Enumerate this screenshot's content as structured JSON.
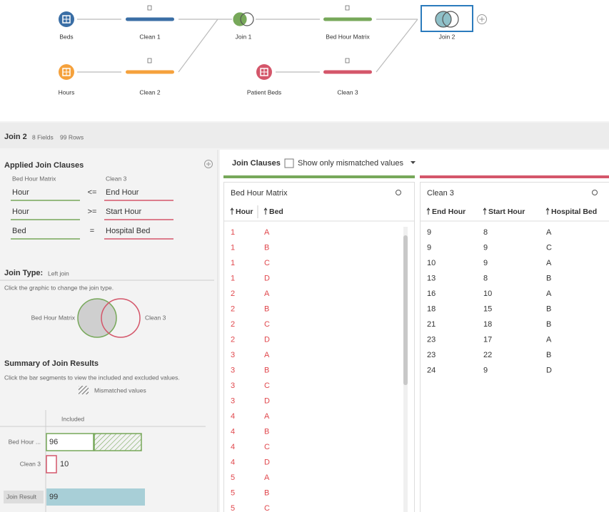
{
  "flow": {
    "nodes": [
      {
        "label": "Beds"
      },
      {
        "label": "Clean 1"
      },
      {
        "label": "Join 1"
      },
      {
        "label": "Bed Hour Matrix"
      },
      {
        "label": "Join 2"
      },
      {
        "label": "Hours"
      },
      {
        "label": "Clean 2"
      },
      {
        "label": "Patient Beds"
      },
      {
        "label": "Clean 3"
      }
    ]
  },
  "header": {
    "title": "Join 2",
    "fields": "8 Fields",
    "rows": "99 Rows"
  },
  "join_clauses": {
    "title": "Applied Join Clauses",
    "left_source": "Bed Hour Matrix",
    "right_source": "Clean 3",
    "clauses": [
      [
        "Hour",
        "<=",
        "End Hour"
      ],
      [
        "Hour",
        ">=",
        "Start Hour"
      ],
      [
        "Bed",
        "=",
        "Hospital Bed"
      ]
    ]
  },
  "join_type": {
    "label": "Join Type:",
    "value": "Left join",
    "hint": "Click the graphic to change the join type.",
    "left": "Bed Hour Matrix",
    "right": "Clean 3"
  },
  "summary": {
    "title": "Summary of Join Results",
    "hint": "Click the bar segments to view the included and excluded values.",
    "legend": "Mismatched values",
    "column": "Included",
    "rows": [
      {
        "label": "Bed Hour ...",
        "included": 96
      },
      {
        "label": "Clean 3",
        "included": 10
      },
      {
        "label": "Join Result",
        "included": 99
      }
    ]
  },
  "toolbar": {
    "tab": "Join Clauses",
    "filter": "Show only mismatched values"
  },
  "tables": [
    {
      "title": "Bed Hour Matrix",
      "columns": [
        "Hour",
        "Bed"
      ],
      "rows": [
        [
          1,
          "A"
        ],
        [
          1,
          "B"
        ],
        [
          1,
          "C"
        ],
        [
          1,
          "D"
        ],
        [
          2,
          "A"
        ],
        [
          2,
          "B"
        ],
        [
          2,
          "C"
        ],
        [
          2,
          "D"
        ],
        [
          3,
          "A"
        ],
        [
          3,
          "B"
        ],
        [
          3,
          "C"
        ],
        [
          3,
          "D"
        ],
        [
          4,
          "A"
        ],
        [
          4,
          "B"
        ],
        [
          4,
          "C"
        ],
        [
          4,
          "D"
        ],
        [
          5,
          "A"
        ],
        [
          5,
          "B"
        ],
        [
          5,
          "C"
        ]
      ]
    },
    {
      "title": "Clean 3",
      "columns": [
        "End Hour",
        "Start Hour",
        "Hospital Bed"
      ],
      "rows": [
        [
          9,
          8,
          "A"
        ],
        [
          9,
          9,
          "C"
        ],
        [
          10,
          9,
          "A"
        ],
        [
          13,
          8,
          "B"
        ],
        [
          16,
          10,
          "A"
        ],
        [
          18,
          15,
          "B"
        ],
        [
          21,
          18,
          "B"
        ],
        [
          23,
          17,
          "A"
        ],
        [
          23,
          22,
          "B"
        ],
        [
          24,
          9,
          "D"
        ]
      ]
    }
  ]
}
